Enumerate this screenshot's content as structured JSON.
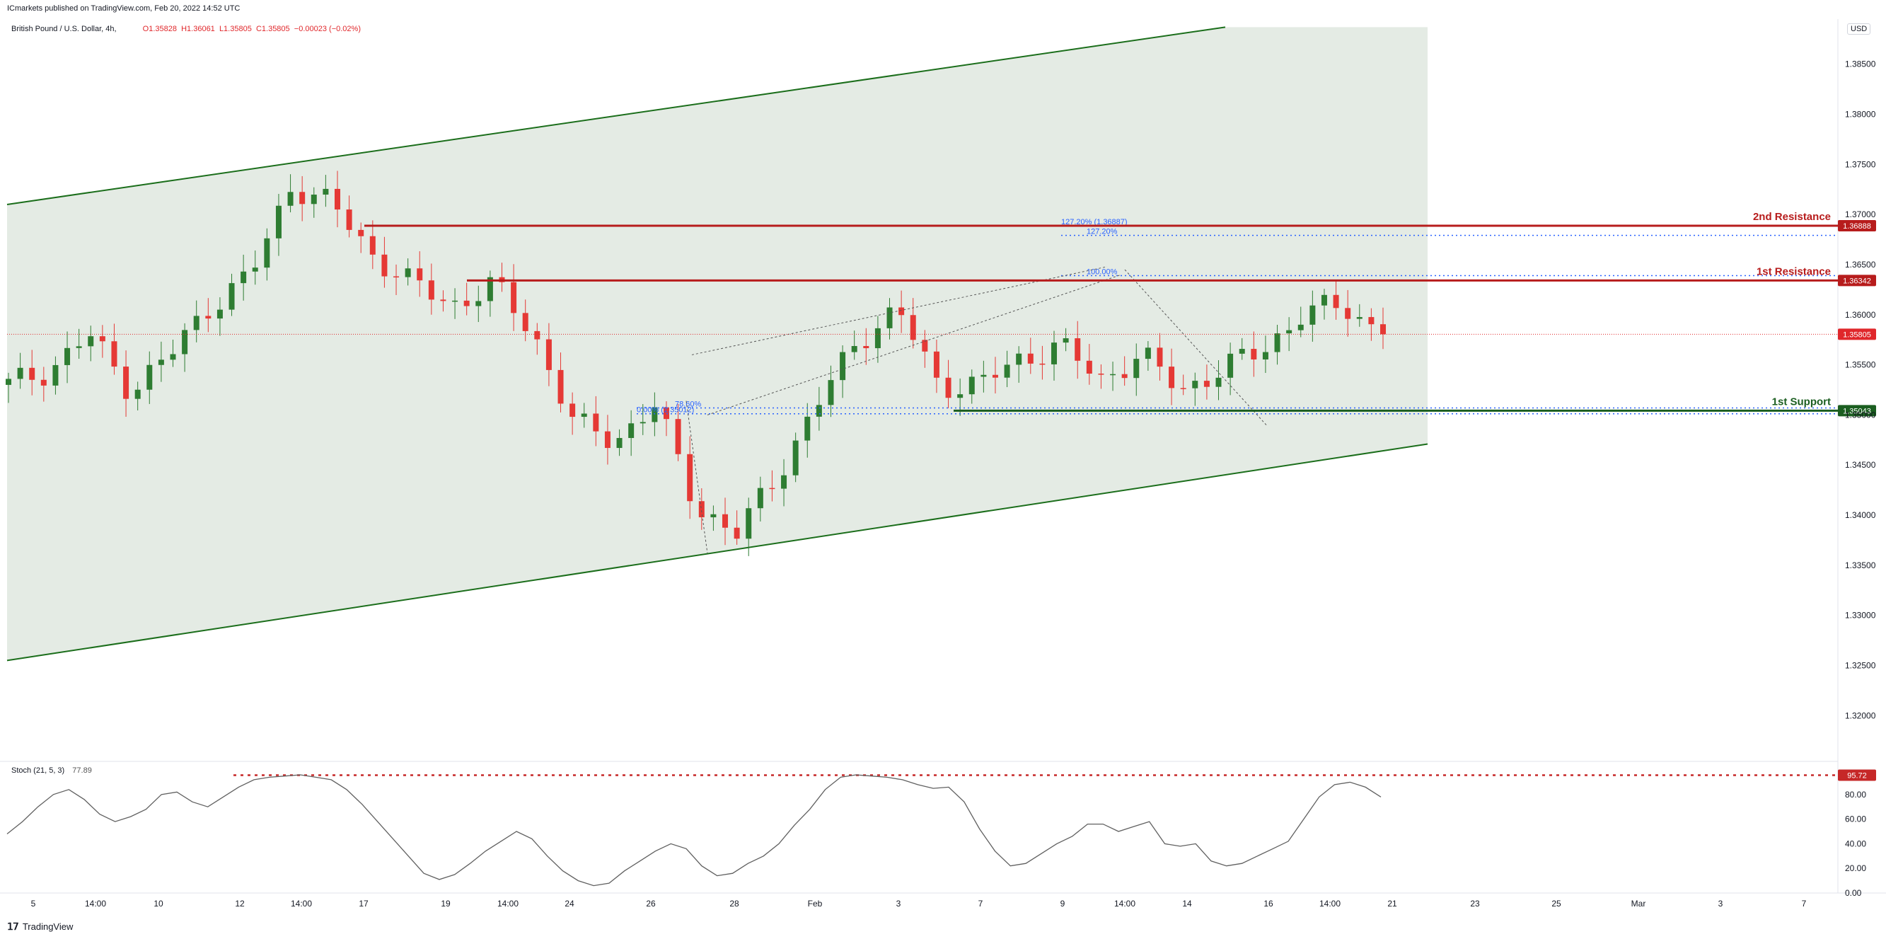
{
  "header": {
    "publisher": "ICmarkets published on TradingView.com, Feb 20, 2022 14:52 UTC",
    "symbol": "British Pound / U.S. Dollar, 4h,",
    "ohlc": {
      "o": "O1.35828",
      "h": "H1.36061",
      "l": "L1.35805",
      "c": "C1.35805",
      "change": "−0.00023 (−0.02%)"
    },
    "currency": "USD"
  },
  "footer": {
    "brand": "TradingView"
  },
  "chart_data": [
    {
      "type": "candlestick",
      "title": "British Pound / U.S. Dollar, 4h",
      "x_labels": [
        "5",
        "14:00",
        "10",
        "12",
        "14:00",
        "17",
        "19",
        "14:00",
        "24",
        "26",
        "28",
        "Feb",
        "3",
        "7",
        "9",
        "14:00",
        "14",
        "16",
        "14:00",
        "21",
        "23",
        "25",
        "Mar",
        "3",
        "7"
      ],
      "y_ticks": [
        "1.38500",
        "1.38000",
        "1.37500",
        "1.37000",
        "1.36500",
        "1.36000",
        "1.35500",
        "1.35000",
        "1.34500",
        "1.34000",
        "1.33500",
        "1.33000",
        "1.32500",
        "1.32000"
      ],
      "ylim": [
        1.3155,
        1.3895
      ],
      "close_path": [
        {
          "d": "Jan 5",
          "c": 1.353
        },
        {
          "d": "Jan 6",
          "c": 1.3545
        },
        {
          "d": "Jan 7",
          "c": 1.358
        },
        {
          "d": "Jan 8",
          "c": 1.3525
        },
        {
          "d": "Jan 10",
          "c": 1.356
        },
        {
          "d": "Jan 11",
          "c": 1.361
        },
        {
          "d": "Jan 12",
          "c": 1.364
        },
        {
          "d": "Jan 13",
          "c": 1.373
        },
        {
          "d": "Jan 14",
          "c": 1.371
        },
        {
          "d": "Jan 17",
          "c": 1.366
        },
        {
          "d": "Jan 18",
          "c": 1.363
        },
        {
          "d": "Jan 19",
          "c": 1.361
        },
        {
          "d": "Jan 20",
          "c": 1.363
        },
        {
          "d": "Jan 21",
          "c": 1.358
        },
        {
          "d": "Jan 24",
          "c": 1.349
        },
        {
          "d": "Jan 25",
          "c": 1.3475
        },
        {
          "d": "Jan 26",
          "c": 1.351
        },
        {
          "d": "Jan 27",
          "c": 1.341
        },
        {
          "d": "Jan 28",
          "c": 1.338
        },
        {
          "d": "Jan 31",
          "c": 1.344
        },
        {
          "d": "Feb 1",
          "c": 1.351
        },
        {
          "d": "Feb 2",
          "c": 1.3575
        },
        {
          "d": "Feb 3",
          "c": 1.3605
        },
        {
          "d": "Feb 4",
          "c": 1.353
        },
        {
          "d": "Feb 7",
          "c": 1.353
        },
        {
          "d": "Feb 8",
          "c": 1.3555
        },
        {
          "d": "Feb 9",
          "c": 1.357
        },
        {
          "d": "Feb 10",
          "c": 1.3535
        },
        {
          "d": "Feb 11",
          "c": 1.356
        },
        {
          "d": "Feb 14",
          "c": 1.3525
        },
        {
          "d": "Feb 15",
          "c": 1.3545
        },
        {
          "d": "Feb 16",
          "c": 1.3565
        },
        {
          "d": "Feb 17",
          "c": 1.36
        },
        {
          "d": "Feb 18",
          "c": 1.361
        },
        {
          "d": "Feb 20",
          "c": 1.35805
        }
      ],
      "levels": [
        {
          "name": "2nd Resistance",
          "value": 1.36888,
          "badge": "1.36888",
          "color": "#b71c1c"
        },
        {
          "name": "1st Resistance",
          "value": 1.36342,
          "badge": "1.36342",
          "color": "#b71c1c"
        },
        {
          "name": "1st Support",
          "value": 1.35043,
          "badge": "1.35043",
          "color": "#1b5e20"
        }
      ],
      "current_price": {
        "value": 1.35805,
        "badge": "1.35805",
        "color": "#e0272b"
      },
      "fib_labels": [
        "127.20% (1.36887)",
        "127.20%",
        "100.00%",
        "78.60%",
        "0.00% (1.35012)"
      ],
      "colors": {
        "up": "#26a69a",
        "up_candle": "#2e7d32",
        "down_candle": "#e53935",
        "channel_fill": "#e4ebe4",
        "channel_line": "#1b6e1b"
      }
    },
    {
      "type": "line",
      "title": "Stoch (21, 5, 3)",
      "value_label": "77.89",
      "y_ticks": [
        "100.00",
        "80.00",
        "60.00",
        "40.00",
        "20.00",
        "0.00"
      ],
      "ylim": [
        0,
        100
      ],
      "overbought": {
        "value": 95.72,
        "badge": "95.72"
      },
      "values": [
        48,
        58,
        70,
        80,
        84,
        76,
        64,
        58,
        62,
        68,
        80,
        82,
        74,
        70,
        78,
        86,
        92,
        94,
        95,
        96,
        94,
        92,
        84,
        72,
        58,
        44,
        30,
        16,
        11,
        15,
        24,
        34,
        42,
        50,
        44,
        30,
        18,
        10,
        6,
        8,
        18,
        26,
        34,
        40,
        36,
        22,
        14,
        16,
        24,
        30,
        40,
        55,
        68,
        84,
        94,
        96,
        95,
        94,
        92,
        88,
        85,
        86,
        74,
        52,
        34,
        22,
        24,
        32,
        40,
        46,
        56,
        56,
        50,
        54,
        58,
        40,
        38,
        40,
        26,
        22,
        24,
        30,
        36,
        42,
        60,
        78,
        88,
        90,
        86,
        78
      ]
    }
  ]
}
